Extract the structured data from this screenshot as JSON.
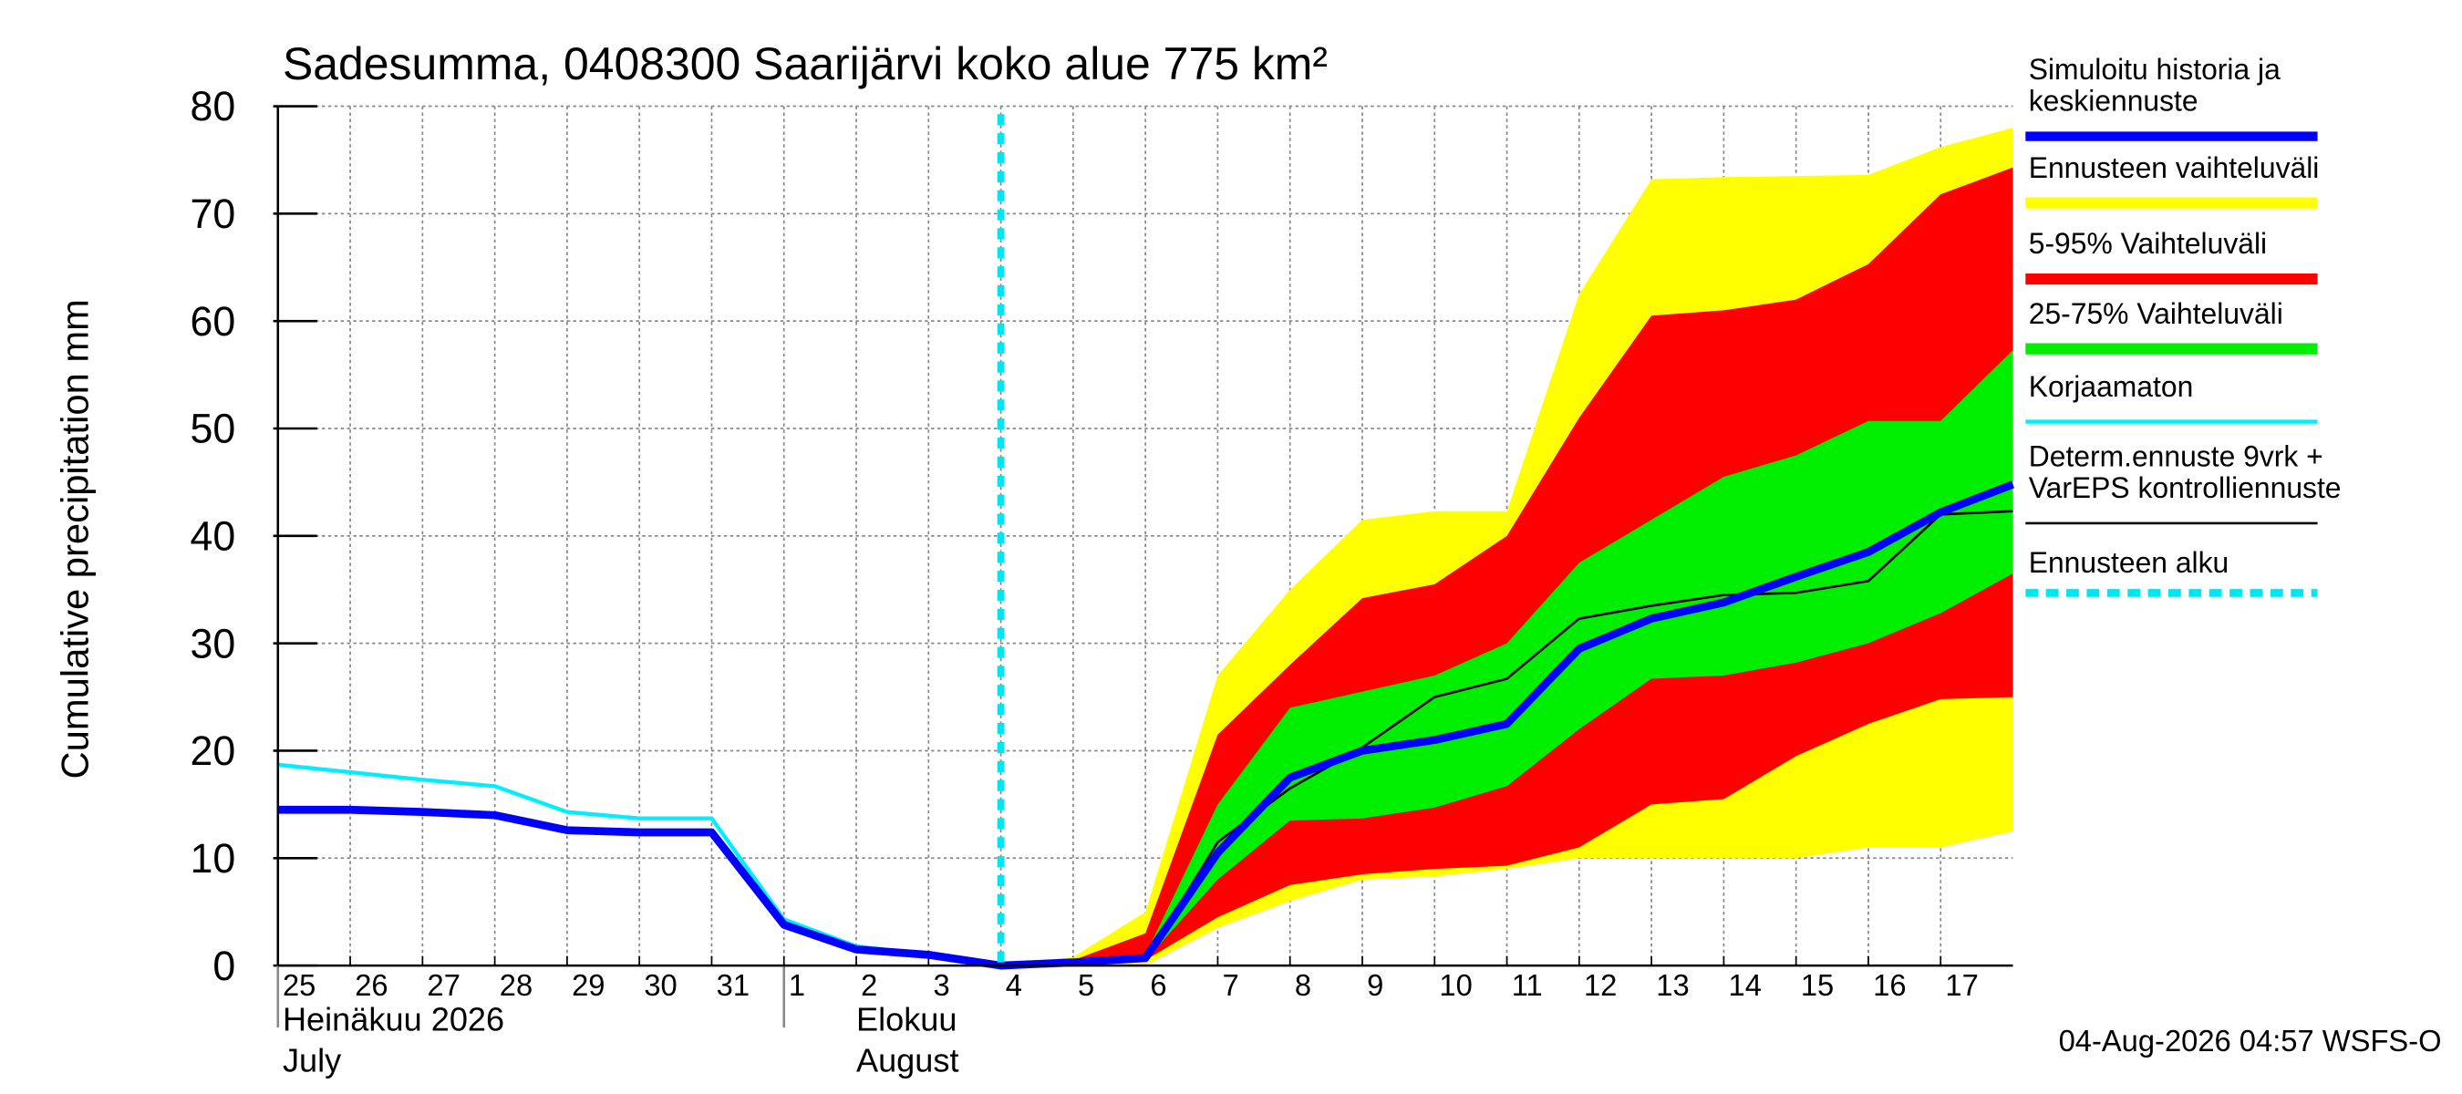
{
  "chart_data": {
    "type": "line",
    "title": "Sadesumma, 0408300 Saarijärvi koko alue 775 km²",
    "ylabel": "Cumulative precipitation   mm",
    "x": [
      0,
      1,
      2,
      3,
      4,
      5,
      6,
      7,
      8,
      9,
      10,
      11,
      12,
      13,
      14,
      15,
      16,
      17,
      18,
      19,
      20,
      21,
      22,
      23,
      24
    ],
    "xlim": [
      0,
      24
    ],
    "xticks": [
      {
        "value": 0,
        "label": "25"
      },
      {
        "value": 1,
        "label": "26"
      },
      {
        "value": 2,
        "label": "27"
      },
      {
        "value": 3,
        "label": "28"
      },
      {
        "value": 4,
        "label": "29"
      },
      {
        "value": 5,
        "label": "30"
      },
      {
        "value": 6,
        "label": "31"
      },
      {
        "value": 7,
        "label": "1"
      },
      {
        "value": 8,
        "label": "2"
      },
      {
        "value": 9,
        "label": "3"
      },
      {
        "value": 10,
        "label": "4"
      },
      {
        "value": 11,
        "label": "5"
      },
      {
        "value": 12,
        "label": "6"
      },
      {
        "value": 13,
        "label": "7"
      },
      {
        "value": 14,
        "label": "8"
      },
      {
        "value": 15,
        "label": "9"
      },
      {
        "value": 16,
        "label": "10"
      },
      {
        "value": 17,
        "label": "11"
      },
      {
        "value": 18,
        "label": "12"
      },
      {
        "value": 19,
        "label": "13"
      },
      {
        "value": 20,
        "label": "14"
      },
      {
        "value": 21,
        "label": "15"
      },
      {
        "value": 22,
        "label": "16"
      },
      {
        "value": 23,
        "label": "17"
      }
    ],
    "months": [
      {
        "value": 0,
        "label": "Heinäkuu  2026",
        "label2": "July"
      },
      {
        "value": 7,
        "label": "Elokuu",
        "label2": "August"
      }
    ],
    "ylim": [
      0,
      80
    ],
    "yticks": [
      0,
      10,
      20,
      30,
      40,
      50,
      60,
      70,
      80
    ],
    "grid": true,
    "series": [
      {
        "name": "Simuloitu historia ja\nkeskiennuste",
        "color": "#0000ff",
        "kind": "line",
        "values": [
          14.5,
          14.5,
          14.3,
          14.0,
          12.6,
          12.4,
          12.4,
          3.8,
          1.5,
          1.0,
          0,
          0.3,
          0.7,
          10.5,
          17.5,
          20,
          21,
          22.5,
          29.5,
          32.3,
          33.8,
          36.2,
          38.5,
          42.2,
          44.8
        ]
      },
      {
        "name": "Ennusteen vaihteluväli",
        "color": "#ffff00",
        "kind": "band",
        "lower": [
          null,
          null,
          null,
          null,
          null,
          null,
          null,
          null,
          null,
          null,
          0,
          0,
          0,
          3.5,
          6,
          8,
          8.3,
          9,
          10,
          10,
          10,
          10,
          11,
          11,
          12.5
        ],
        "upper": [
          null,
          null,
          null,
          null,
          null,
          null,
          null,
          null,
          null,
          null,
          0,
          0.8,
          5,
          27,
          35,
          41.5,
          42.3,
          42.3,
          62.5,
          73.2,
          73.4,
          73.5,
          73.6,
          76.2,
          78
        ]
      },
      {
        "name": "5-95% Vaihteluväli",
        "color": "#ff0000",
        "kind": "band",
        "lower": [
          null,
          null,
          null,
          null,
          null,
          null,
          null,
          null,
          null,
          null,
          0,
          0.3,
          0.5,
          4.5,
          7.5,
          8.5,
          9,
          9.3,
          11,
          15,
          15.5,
          19.5,
          22.5,
          24.8,
          25
        ],
        "upper": [
          null,
          null,
          null,
          null,
          null,
          null,
          null,
          null,
          null,
          null,
          0,
          0.5,
          3,
          21.5,
          28,
          34.2,
          35.5,
          40,
          51,
          60.5,
          61,
          62,
          65.3,
          71.8,
          74.3
        ]
      },
      {
        "name": "25-75% Vaihteluväli",
        "color": "#00ee00",
        "kind": "band",
        "lower": [
          null,
          null,
          null,
          null,
          null,
          null,
          null,
          null,
          null,
          null,
          0,
          0.3,
          0.5,
          8,
          13.5,
          13.7,
          14.7,
          16.7,
          22,
          26.7,
          27,
          28.2,
          30,
          32.8,
          36.5
        ],
        "upper": [
          null,
          null,
          null,
          null,
          null,
          null,
          null,
          null,
          null,
          null,
          0,
          0.5,
          1,
          15,
          24,
          25.5,
          27,
          30,
          37.5,
          41.5,
          45.5,
          47.5,
          50.7,
          50.7,
          57.3
        ]
      },
      {
        "name": "Korjaamaton",
        "color": "#00eeff",
        "kind": "line",
        "values": [
          18.7,
          18,
          17.3,
          16.7,
          14.3,
          13.7,
          13.7,
          4.3,
          1.8,
          1.0,
          0,
          null,
          null,
          null,
          null,
          null,
          null,
          null,
          null,
          null,
          null,
          null,
          null,
          null,
          null
        ]
      },
      {
        "name": "Determ.ennuste 9vrk +\nVarEPS kontrolliennuste",
        "color": "#000000",
        "kind": "line",
        "values": [
          null,
          null,
          null,
          null,
          null,
          null,
          null,
          null,
          null,
          null,
          0,
          0.3,
          0.5,
          11.5,
          16.5,
          20.3,
          25,
          26.7,
          32.3,
          33.5,
          34.5,
          34.7,
          35.8,
          42,
          42.3
        ]
      }
    ],
    "forecast_start": {
      "name": "Ennusteen alku",
      "color": "#00e5ee",
      "x": 10
    },
    "footer": "04-Aug-2026 04:57 WSFS-O"
  }
}
